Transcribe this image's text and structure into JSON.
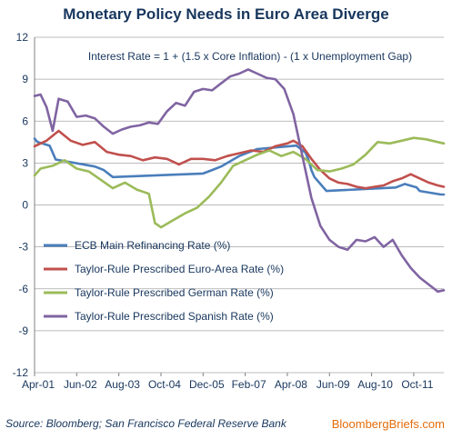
{
  "title": "Monetary Policy Needs in Euro Area Diverge",
  "source_note": "Source: Bloomberg; San Francisco Federal Reserve Bank",
  "brand": "BloombergBriefs.com",
  "colors": {
    "ecb": "#4a7ebb",
    "euro_area": "#c0504d",
    "german": "#9bbb59",
    "spanish": "#8064a2",
    "text": "#17365d",
    "brand": "#e36c0a",
    "grid": "#a6a6a6"
  },
  "chart_data": {
    "type": "line",
    "title": "Monetary Policy Needs in Euro Area Diverge",
    "annotation": "Interest Rate = 1 + (1.5 x Core Inflation) - (1 x Unemployment Gap)",
    "x_ticks": [
      "Apr-01",
      "Jun-02",
      "Aug-03",
      "Oct-04",
      "Dec-05",
      "Feb-07",
      "Apr-08",
      "Jun-09",
      "Aug-10",
      "Oct-11"
    ],
    "x_range": [
      "2001-04",
      "2012-08"
    ],
    "y_ticks": [
      12,
      9,
      6,
      3,
      0,
      -3,
      -6,
      -9,
      -12
    ],
    "ylim": [
      -12,
      12
    ],
    "grid": "horizontal",
    "legend_position": "lower-left",
    "series": [
      {
        "name": "ECB Main Refinancing Rate (%)",
        "color": "#4a7ebb",
        "points": [
          [
            "2001-04",
            4.75
          ],
          [
            "2001-05",
            4.5
          ],
          [
            "2001-09",
            4.25
          ],
          [
            "2001-10",
            3.75
          ],
          [
            "2001-11",
            3.25
          ],
          [
            "2002-12",
            2.75
          ],
          [
            "2003-03",
            2.5
          ],
          [
            "2003-06",
            2.0
          ],
          [
            "2005-12",
            2.25
          ],
          [
            "2006-03",
            2.5
          ],
          [
            "2006-06",
            2.75
          ],
          [
            "2006-08",
            3.0
          ],
          [
            "2006-10",
            3.25
          ],
          [
            "2006-12",
            3.5
          ],
          [
            "2007-03",
            3.75
          ],
          [
            "2007-06",
            4.0
          ],
          [
            "2008-07",
            4.25
          ],
          [
            "2008-10",
            3.75
          ],
          [
            "2008-11",
            3.25
          ],
          [
            "2008-12",
            2.5
          ],
          [
            "2009-01",
            2.0
          ],
          [
            "2009-03",
            1.5
          ],
          [
            "2009-04",
            1.25
          ],
          [
            "2009-05",
            1.0
          ],
          [
            "2011-04",
            1.25
          ],
          [
            "2011-07",
            1.5
          ],
          [
            "2011-11",
            1.25
          ],
          [
            "2011-12",
            1.0
          ],
          [
            "2012-07",
            0.75
          ],
          [
            "2012-08",
            0.75
          ]
        ]
      },
      {
        "name": "Taylor-Rule Prescribed Euro-Area Rate (%)",
        "color": "#c0504d",
        "points": [
          [
            "2001-04",
            4.2
          ],
          [
            "2001-08",
            4.6
          ],
          [
            "2001-12",
            5.3
          ],
          [
            "2002-04",
            4.6
          ],
          [
            "2002-08",
            4.3
          ],
          [
            "2002-12",
            4.5
          ],
          [
            "2003-04",
            3.8
          ],
          [
            "2003-08",
            3.6
          ],
          [
            "2003-12",
            3.5
          ],
          [
            "2004-04",
            3.2
          ],
          [
            "2004-08",
            3.4
          ],
          [
            "2004-12",
            3.3
          ],
          [
            "2005-04",
            2.9
          ],
          [
            "2005-08",
            3.3
          ],
          [
            "2005-12",
            3.3
          ],
          [
            "2006-04",
            3.2
          ],
          [
            "2006-08",
            3.5
          ],
          [
            "2006-12",
            3.7
          ],
          [
            "2007-04",
            3.9
          ],
          [
            "2007-08",
            3.8
          ],
          [
            "2007-12",
            4.2
          ],
          [
            "2008-04",
            4.4
          ],
          [
            "2008-06",
            4.6
          ],
          [
            "2008-09",
            4.2
          ],
          [
            "2008-12",
            3.3
          ],
          [
            "2009-03",
            2.5
          ],
          [
            "2009-06",
            1.9
          ],
          [
            "2009-09",
            1.6
          ],
          [
            "2009-12",
            1.5
          ],
          [
            "2010-03",
            1.3
          ],
          [
            "2010-06",
            1.2
          ],
          [
            "2010-09",
            1.3
          ],
          [
            "2010-12",
            1.4
          ],
          [
            "2011-03",
            1.7
          ],
          [
            "2011-06",
            1.9
          ],
          [
            "2011-09",
            2.2
          ],
          [
            "2011-12",
            1.9
          ],
          [
            "2012-03",
            1.6
          ],
          [
            "2012-06",
            1.4
          ],
          [
            "2012-08",
            1.3
          ]
        ]
      },
      {
        "name": "Taylor-Rule Prescribed German Rate (%)",
        "color": "#9bbb59",
        "points": [
          [
            "2001-04",
            2.1
          ],
          [
            "2001-06",
            2.6
          ],
          [
            "2001-10",
            2.8
          ],
          [
            "2002-02",
            3.2
          ],
          [
            "2002-06",
            2.6
          ],
          [
            "2002-10",
            2.4
          ],
          [
            "2003-02",
            1.8
          ],
          [
            "2003-06",
            1.2
          ],
          [
            "2003-10",
            1.6
          ],
          [
            "2004-02",
            1.1
          ],
          [
            "2004-06",
            0.8
          ],
          [
            "2004-08",
            -1.3
          ],
          [
            "2004-10",
            -1.6
          ],
          [
            "2005-02",
            -1.1
          ],
          [
            "2005-06",
            -0.6
          ],
          [
            "2005-10",
            -0.2
          ],
          [
            "2006-02",
            0.6
          ],
          [
            "2006-06",
            1.6
          ],
          [
            "2006-10",
            2.8
          ],
          [
            "2007-02",
            3.2
          ],
          [
            "2007-06",
            3.6
          ],
          [
            "2007-10",
            3.9
          ],
          [
            "2008-02",
            3.5
          ],
          [
            "2008-06",
            3.8
          ],
          [
            "2008-10",
            3.3
          ],
          [
            "2009-02",
            2.5
          ],
          [
            "2009-06",
            2.4
          ],
          [
            "2009-10",
            2.6
          ],
          [
            "2010-02",
            2.9
          ],
          [
            "2010-06",
            3.6
          ],
          [
            "2010-10",
            4.5
          ],
          [
            "2011-02",
            4.4
          ],
          [
            "2011-06",
            4.6
          ],
          [
            "2011-10",
            4.8
          ],
          [
            "2012-02",
            4.7
          ],
          [
            "2012-06",
            4.5
          ],
          [
            "2012-08",
            4.4
          ]
        ]
      },
      {
        "name": "Taylor-Rule Prescribed Spanish Rate (%)",
        "color": "#8064a2",
        "points": [
          [
            "2001-04",
            7.8
          ],
          [
            "2001-06",
            7.9
          ],
          [
            "2001-08",
            7.0
          ],
          [
            "2001-10",
            5.3
          ],
          [
            "2001-12",
            7.6
          ],
          [
            "2002-03",
            7.4
          ],
          [
            "2002-06",
            6.3
          ],
          [
            "2002-09",
            6.4
          ],
          [
            "2002-12",
            6.2
          ],
          [
            "2003-03",
            5.6
          ],
          [
            "2003-06",
            5.1
          ],
          [
            "2003-09",
            5.4
          ],
          [
            "2003-12",
            5.6
          ],
          [
            "2004-03",
            5.7
          ],
          [
            "2004-06",
            5.9
          ],
          [
            "2004-09",
            5.8
          ],
          [
            "2004-12",
            6.7
          ],
          [
            "2005-03",
            7.3
          ],
          [
            "2005-06",
            7.1
          ],
          [
            "2005-09",
            8.1
          ],
          [
            "2005-12",
            8.3
          ],
          [
            "2006-03",
            8.2
          ],
          [
            "2006-06",
            8.7
          ],
          [
            "2006-09",
            9.2
          ],
          [
            "2006-12",
            9.4
          ],
          [
            "2007-03",
            9.7
          ],
          [
            "2007-06",
            9.4
          ],
          [
            "2007-09",
            9.1
          ],
          [
            "2007-12",
            9.0
          ],
          [
            "2008-03",
            8.3
          ],
          [
            "2008-06",
            6.5
          ],
          [
            "2008-09",
            3.5
          ],
          [
            "2008-12",
            0.5
          ],
          [
            "2009-03",
            -1.5
          ],
          [
            "2009-06",
            -2.5
          ],
          [
            "2009-09",
            -3.0
          ],
          [
            "2009-12",
            -3.2
          ],
          [
            "2010-03",
            -2.5
          ],
          [
            "2010-06",
            -2.6
          ],
          [
            "2010-09",
            -2.3
          ],
          [
            "2010-12",
            -3.0
          ],
          [
            "2011-03",
            -2.5
          ],
          [
            "2011-06",
            -3.6
          ],
          [
            "2011-09",
            -4.5
          ],
          [
            "2011-12",
            -5.2
          ],
          [
            "2012-03",
            -5.7
          ],
          [
            "2012-06",
            -6.2
          ],
          [
            "2012-08",
            -6.1
          ]
        ]
      }
    ]
  }
}
